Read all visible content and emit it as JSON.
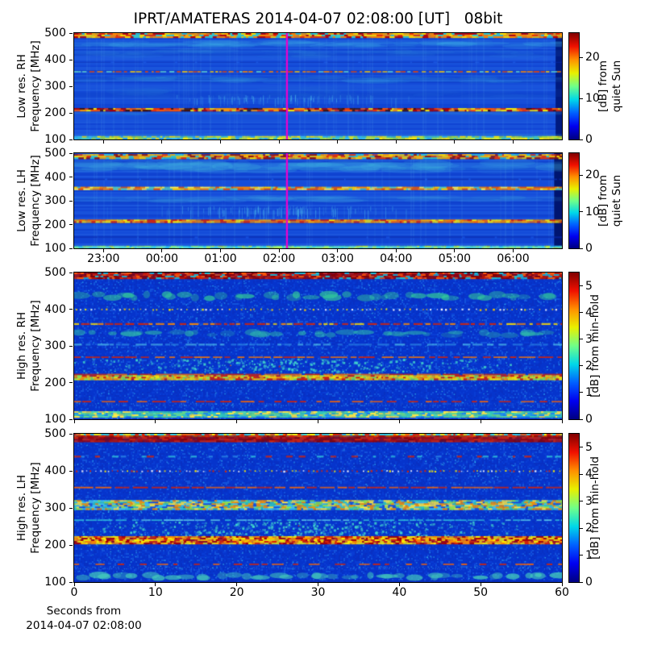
{
  "title": "IPRT/AMATERAS 2014-04-07 02:08:00 [UT]   08bit",
  "footer": {
    "line1": "Seconds from",
    "line2": "2014-04-07 02:08:00"
  },
  "colors": {
    "background": "#ffffff",
    "axis": "#000000",
    "marker_line": "#ec00cc",
    "jet_stops": [
      "#000080",
      "#0000f0",
      "#0060ff",
      "#00d8e8",
      "#70ff88",
      "#e8f000",
      "#ff9000",
      "#f01000",
      "#800000"
    ]
  },
  "chart_data": {
    "type": "heatmap",
    "description": "Four dynamic radio spectrograms (frequency vs time) with jet colormap",
    "freq_axis": {
      "unit": "MHz",
      "range": [
        100,
        500
      ],
      "ticks": [
        500,
        400,
        300,
        200,
        100
      ]
    },
    "time_axis": {
      "range_start": "22:30",
      "range_end": "06:50",
      "ticks": [
        "23:00",
        "00:00",
        "01:00",
        "02:00",
        "03:00",
        "04:00",
        "05:00",
        "06:00"
      ]
    },
    "seconds_axis": {
      "range": [
        0,
        60
      ],
      "ticks": [
        "0",
        "10",
        "20",
        "30",
        "40",
        "50",
        "60"
      ],
      "label_line1": "Seconds from",
      "label_line2": "2014-04-07 02:08:00"
    },
    "marker_time": "02:08",
    "panels": [
      {
        "id": "low-res-rh",
        "ylabel": "Low res. RH\nFrequency [MHz]",
        "xaxis": "time",
        "has_xlabels": false,
        "marker": true,
        "colorbar": {
          "label": "[dB] from\nquiet Sun",
          "ticks": [
            0,
            10,
            20
          ],
          "vmax": 26
        },
        "bg": {
          "base": "#1248d8",
          "rows": true,
          "row_dark": "#0a34bc",
          "row_light": "#2f74e8"
        },
        "bands": [
          {
            "style": "rightedge",
            "color": "#001a80",
            "wfrac": 0.013
          },
          {
            "style": "mottled",
            "f": [
              486,
              500
            ],
            "cell": 6,
            "colors": [
              "#ff8800",
              "#ee3300",
              "#ffdd00",
              "#bb0000",
              "#ffaa00",
              "#33cccc"
            ]
          },
          {
            "style": "diffuse",
            "f": [
              448,
              468
            ],
            "color": "#40b8e8",
            "alpha": 0.38,
            "patches": 52
          },
          {
            "style": "diffuse",
            "f": [
              412,
              436
            ],
            "color": "#3898e0",
            "alpha": 0.25,
            "patches": 40
          },
          {
            "style": "line",
            "f": [
              388,
              392
            ],
            "colors": [
              "#0a2bb0"
            ],
            "dash": [
              40,
              4
            ],
            "alpha": 0.55
          },
          {
            "style": "line",
            "f": [
              352,
              357
            ],
            "colors": [
              "#ffcc00",
              "#ee4400",
              "#66ddcc",
              "#ff8800"
            ],
            "dash": [
              5,
              3
            ],
            "alpha": 0.95
          },
          {
            "style": "diffuse",
            "f": [
              316,
              334
            ],
            "color": "#38a0e0",
            "alpha": 0.35,
            "patches": 46
          },
          {
            "style": "diffuse",
            "f": [
              260,
              290
            ],
            "color": "#2878d8",
            "alpha": 0.25,
            "patches": 30
          },
          {
            "style": "streakzone",
            "f": [
              230,
              268
            ],
            "color": "#55ccee",
            "count": 95,
            "xcenter": 0.42,
            "xspread": 0.17
          },
          {
            "style": "mottled",
            "f": [
              207,
              218
            ],
            "cell": 6,
            "colors": [
              "#ee3300",
              "#ff9900",
              "#ffee00",
              "#aa0000",
              "#ff5500",
              "#441100"
            ]
          },
          {
            "style": "diffuse",
            "f": [
              193,
              203
            ],
            "color": "#38a0e0",
            "alpha": 0.3,
            "patches": 30
          },
          {
            "style": "diffuse",
            "f": [
              114,
              122
            ],
            "color": "#3090dd",
            "alpha": 0.3,
            "patches": 25
          },
          {
            "style": "mottled",
            "f": [
              104,
              113
            ],
            "cell": 5,
            "colors": [
              "#99dd44",
              "#ffee00",
              "#44ccbb",
              "#33bbee",
              "#ccee33"
            ]
          }
        ]
      },
      {
        "id": "low-res-lh",
        "ylabel": "Low res. LH\nFrequency [MHz]",
        "xaxis": "time",
        "has_xlabels": true,
        "marker": true,
        "colorbar": {
          "label": "[dB] from\nquiet Sun",
          "ticks": [
            0,
            10,
            20
          ],
          "vmax": 26
        },
        "bg": {
          "base": "#1248d8",
          "rows": true,
          "row_dark": "#0a34bc",
          "row_light": "#2f74e8"
        },
        "bands": [
          {
            "style": "rightedge",
            "color": "#001570",
            "wfrac": 0.016
          },
          {
            "style": "mottled",
            "f": [
              482,
              496
            ],
            "cell": 6,
            "colors": [
              "#ee3300",
              "#ff9900",
              "#ffdd00",
              "#991100",
              "#ffbb00",
              "#33cccc"
            ]
          },
          {
            "style": "diffuse",
            "f": [
              428,
              462
            ],
            "color": "#45c0e0",
            "alpha": 0.42,
            "patches": 64
          },
          {
            "style": "line",
            "f": [
              387,
              393
            ],
            "colors": [
              "#0a2bb0"
            ],
            "dash": [
              40,
              2
            ],
            "alpha": 0.8
          },
          {
            "style": "mottled",
            "f": [
              347,
              359
            ],
            "cell": 7,
            "colors": [
              "#ffcc00",
              "#ff8800",
              "#ffee55",
              "#55ccbb",
              "#ee5500"
            ]
          },
          {
            "style": "diffuse",
            "f": [
              298,
              316
            ],
            "color": "#40a8e0",
            "alpha": 0.4,
            "patches": 48
          },
          {
            "style": "streakzone",
            "f": [
              228,
              280
            ],
            "color": "#55ccee",
            "count": 130,
            "xcenter": 0.4,
            "xspread": 0.19
          },
          {
            "style": "mottled",
            "f": [
              209,
              221
            ],
            "cell": 6,
            "colors": [
              "#ff6600",
              "#ffaa00",
              "#ffee00",
              "#dd2200",
              "#ee8800"
            ]
          },
          {
            "style": "line",
            "f": [
              143,
              150
            ],
            "colors": [
              "#0a2bb0"
            ],
            "dash": [
              40,
              3
            ],
            "alpha": 0.7
          },
          {
            "style": "mottled",
            "f": [
              100,
              111
            ],
            "cell": 5,
            "colors": [
              "#55ddbb",
              "#88ee88",
              "#bbee44",
              "#33ccee",
              "#66ddcc"
            ]
          }
        ]
      },
      {
        "id": "high-res-rh",
        "ylabel": "High res. RH\nFrequency [MHz]",
        "xaxis": "seconds",
        "has_xlabels": false,
        "marker": false,
        "colorbar": {
          "label": "[dB] from min-hold",
          "ticks": [
            0,
            1,
            2,
            3,
            4,
            5
          ],
          "vmax": 5.5
        },
        "bg": {
          "base": "#0634cc",
          "noise": true
        },
        "bands": [
          {
            "style": "mottled",
            "f": [
              484,
              500
            ],
            "cell": 5,
            "colors": [
              "#990000",
              "#bb1100",
              "#dd2200",
              "#880000",
              "#ff5500",
              "#22bbcc"
            ]
          },
          {
            "style": "blobs",
            "f": [
              424,
              446
            ],
            "color": "#33cc99",
            "count": 40,
            "alpha": 0.55
          },
          {
            "style": "dots",
            "f": [
              398,
              402
            ],
            "colors": [
              "#ffffff",
              "#ffee00",
              "#ffcc00"
            ],
            "step": 6
          },
          {
            "style": "line",
            "f": [
              357,
              362
            ],
            "colors": [
              "#ff8800",
              "#dd2200",
              "#ffdd00"
            ],
            "dash": [
              8,
              4
            ],
            "alpha": 0.9
          },
          {
            "style": "blobs",
            "f": [
              324,
              342
            ],
            "color": "#2fbbaa",
            "count": 36,
            "alpha": 0.5
          },
          {
            "style": "line",
            "f": [
              301,
              306
            ],
            "colors": [
              "#2f8fe8",
              "#55ccee"
            ],
            "dash": [
              10,
              6
            ],
            "alpha": 0.7
          },
          {
            "style": "line",
            "f": [
              267,
              271
            ],
            "colors": [
              "#dd2200",
              "#ff7700"
            ],
            "dash": [
              14,
              6
            ],
            "alpha": 0.9
          },
          {
            "style": "scatter",
            "f": [
              226,
              266
            ],
            "color": "#44ddcc",
            "count": 430,
            "xcenter": 0.45,
            "xspread": 0.5
          },
          {
            "style": "line",
            "f": [
              220,
              224
            ],
            "colors": [
              "#dd2200",
              "#ff6600"
            ],
            "dash": [
              20,
              3
            ],
            "alpha": 0.9
          },
          {
            "style": "mottled",
            "f": [
              207,
              220
            ],
            "cell": 4,
            "colors": [
              "#ffee00",
              "#ff9900",
              "#dd2200",
              "#99ee44",
              "#ffcc00"
            ]
          },
          {
            "style": "line",
            "f": [
              146,
              150
            ],
            "colors": [
              "#dd2200",
              "#ff6600"
            ],
            "dash": [
              12,
              10
            ],
            "alpha": 0.9
          },
          {
            "style": "fine",
            "f": [
              136,
              143
            ],
            "color": "#4499ee",
            "step": 3
          },
          {
            "style": "mottled",
            "f": [
              107,
              122
            ],
            "cell": 5,
            "colors": [
              "#33ccbb",
              "#55ddaa",
              "#ffee44",
              "#2299ee",
              "#66dd88"
            ]
          }
        ]
      },
      {
        "id": "high-res-lh",
        "ylabel": "High res. LH\nFrequency [MHz]",
        "xaxis": "seconds",
        "has_xlabels": true,
        "marker": false,
        "colorbar": {
          "label": "[dB] from min-hold",
          "ticks": [
            0,
            1,
            2,
            3,
            4,
            5
          ],
          "vmax": 5.5
        },
        "bg": {
          "base": "#0634cc",
          "noise": true
        },
        "bands": [
          {
            "style": "mottled",
            "f": [
              495,
              500
            ],
            "cell": 4,
            "colors": [
              "#ffee00",
              "#33ccdd",
              "#ff6600",
              "#dd2200",
              "#44ddcc"
            ]
          },
          {
            "style": "mottled",
            "f": [
              481,
              495
            ],
            "cell": 7,
            "colors": [
              "#880000",
              "#990000",
              "#aa0000",
              "#bb1100",
              "#dd2200"
            ]
          },
          {
            "style": "line",
            "f": [
              436,
              441
            ],
            "colors": [
              "#dd2200",
              "#33ccdd",
              "#2f8fe8"
            ],
            "dash": [
              6,
              14
            ],
            "alpha": 0.8
          },
          {
            "style": "dots",
            "f": [
              398,
              402
            ],
            "colors": [
              "#dd2200",
              "#ffffff",
              "#ffee00"
            ],
            "step": 5
          },
          {
            "style": "line",
            "f": [
              353,
              357
            ],
            "colors": [
              "#dd2200",
              "#ff6600"
            ],
            "dash": [
              16,
              4
            ],
            "alpha": 0.9
          },
          {
            "style": "mottled",
            "f": [
              299,
              321
            ],
            "cell": 5,
            "colors": [
              "#ffee44",
              "#99ee44",
              "#33ccbb",
              "#ff9900",
              "#44ccee",
              "#1a55dd"
            ]
          },
          {
            "style": "line",
            "f": [
              265,
              269
            ],
            "colors": [
              "#33ccdd",
              "#66ddee"
            ],
            "dash": [
              10,
              5
            ],
            "alpha": 0.8
          },
          {
            "style": "scatter",
            "f": [
              226,
              264
            ],
            "color": "#44ddcc",
            "count": 430,
            "xcenter": 0.45,
            "xspread": 0.5
          },
          {
            "style": "mottled",
            "f": [
              206,
              224
            ],
            "cell": 4,
            "colors": [
              "#dd2200",
              "#ff8800",
              "#ffee00",
              "#aa0000",
              "#ffbb00"
            ]
          },
          {
            "style": "line",
            "f": [
              146,
              150
            ],
            "colors": [
              "#dd2200",
              "#ff6600"
            ],
            "dash": [
              10,
              14
            ],
            "alpha": 0.9
          },
          {
            "style": "fine",
            "f": [
              134,
              141
            ],
            "color": "#4499ee",
            "step": 3
          },
          {
            "style": "blobs",
            "f": [
              106,
              124
            ],
            "color": "#44ccbb",
            "count": 42,
            "alpha": 0.6
          },
          {
            "style": "line",
            "f": [
              100,
              104
            ],
            "colors": [
              "#0a2bb0"
            ],
            "dash": [
              50,
              2
            ],
            "alpha": 0.85
          }
        ]
      }
    ]
  }
}
